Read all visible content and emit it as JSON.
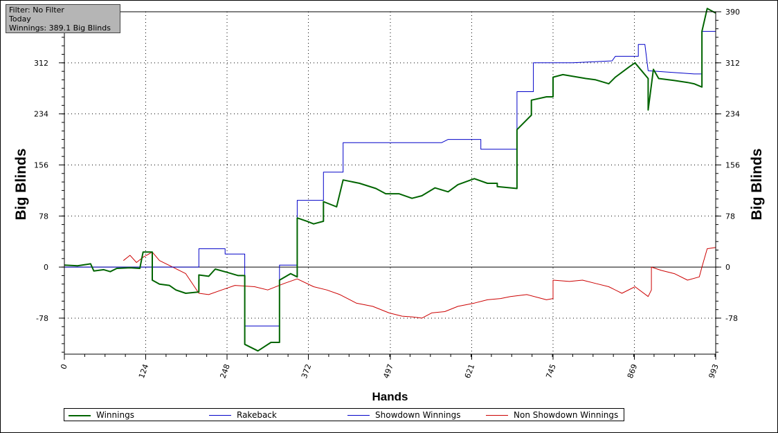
{
  "info_box": {
    "filter": "Filter: No Filter",
    "period": "Today",
    "winnings": "Winnings: 389.1 Big Blinds"
  },
  "chart_data": {
    "type": "line",
    "xlabel": "Hands",
    "ylabel": "Big Blinds",
    "xlim": [
      0,
      993
    ],
    "ylim": [
      -133,
      390
    ],
    "x_ticks": [
      0,
      124,
      248,
      372,
      497,
      621,
      745,
      869,
      993
    ],
    "y_ticks": [
      -78,
      0,
      78,
      156,
      234,
      312,
      390
    ],
    "grid": true,
    "legend": "bottom",
    "series": [
      {
        "name": "Winnings",
        "color": "#006400",
        "points": [
          [
            0,
            3
          ],
          [
            20,
            2
          ],
          [
            40,
            5
          ],
          [
            45,
            -6
          ],
          [
            60,
            -4
          ],
          [
            70,
            -7
          ],
          [
            80,
            -2
          ],
          [
            100,
            -1
          ],
          [
            115,
            -2
          ],
          [
            120,
            23
          ],
          [
            134,
            23
          ],
          [
            134,
            -20
          ],
          [
            145,
            -26
          ],
          [
            160,
            -28
          ],
          [
            170,
            -35
          ],
          [
            185,
            -40
          ],
          [
            205,
            -38
          ],
          [
            205,
            -12
          ],
          [
            220,
            -14
          ],
          [
            230,
            -3
          ],
          [
            248,
            -8
          ],
          [
            265,
            -13
          ],
          [
            275,
            -13
          ],
          [
            275,
            -118
          ],
          [
            295,
            -128
          ],
          [
            315,
            -115
          ],
          [
            328,
            -115
          ],
          [
            328,
            -20
          ],
          [
            345,
            -10
          ],
          [
            355,
            -15
          ],
          [
            355,
            75
          ],
          [
            370,
            70
          ],
          [
            380,
            66
          ],
          [
            395,
            70
          ],
          [
            395,
            100
          ],
          [
            415,
            92
          ],
          [
            425,
            133
          ],
          [
            450,
            128
          ],
          [
            475,
            120
          ],
          [
            490,
            112
          ],
          [
            510,
            112
          ],
          [
            530,
            105
          ],
          [
            545,
            109
          ],
          [
            565,
            121
          ],
          [
            585,
            115
          ],
          [
            600,
            126
          ],
          [
            625,
            135
          ],
          [
            645,
            128
          ],
          [
            660,
            128
          ],
          [
            660,
            123
          ],
          [
            690,
            120
          ],
          [
            690,
            210
          ],
          [
            712,
            232
          ],
          [
            712,
            255
          ],
          [
            735,
            260
          ],
          [
            745,
            260
          ],
          [
            745,
            290
          ],
          [
            760,
            294
          ],
          [
            795,
            288
          ],
          [
            810,
            286
          ],
          [
            830,
            280
          ],
          [
            840,
            290
          ],
          [
            860,
            305
          ],
          [
            870,
            312
          ],
          [
            880,
            300
          ],
          [
            890,
            288
          ],
          [
            890,
            240
          ],
          [
            898,
            302
          ],
          [
            906,
            288
          ],
          [
            930,
            285
          ],
          [
            950,
            282
          ],
          [
            960,
            280
          ],
          [
            972,
            275
          ],
          [
            972,
            360
          ],
          [
            980,
            395
          ],
          [
            993,
            388
          ]
        ]
      },
      {
        "name": "Rakeback",
        "color": "#0000c8",
        "points": [
          [
            0,
            0
          ],
          [
            40,
            0
          ],
          [
            100,
            0
          ],
          [
            205,
            0
          ],
          [
            205,
            28
          ],
          [
            245,
            28
          ],
          [
            245,
            20
          ],
          [
            275,
            20
          ],
          [
            275,
            -90
          ],
          [
            328,
            -90
          ],
          [
            328,
            -80
          ],
          [
            328,
            3
          ],
          [
            355,
            3
          ],
          [
            355,
            102
          ],
          [
            395,
            102
          ],
          [
            395,
            145
          ],
          [
            425,
            145
          ],
          [
            425,
            190
          ],
          [
            575,
            190
          ],
          [
            585,
            195
          ],
          [
            635,
            195
          ],
          [
            635,
            180
          ],
          [
            690,
            180
          ],
          [
            690,
            268
          ],
          [
            715,
            268
          ],
          [
            715,
            312
          ],
          [
            775,
            312
          ],
          [
            835,
            315
          ],
          [
            840,
            322
          ],
          [
            875,
            322
          ],
          [
            875,
            340
          ],
          [
            885,
            340
          ],
          [
            885,
            340
          ],
          [
            890,
            300
          ],
          [
            960,
            295
          ],
          [
            972,
            295
          ],
          [
            972,
            360
          ],
          [
            993,
            360
          ]
        ]
      },
      {
        "name": "Showdown Winnings",
        "color": "#0000c8",
        "points": []
      },
      {
        "name": "Non Showdown Winnings",
        "color": "#cc0000",
        "points": [
          [
            90,
            10
          ],
          [
            100,
            18
          ],
          [
            110,
            7
          ],
          [
            120,
            15
          ],
          [
            134,
            23
          ],
          [
            145,
            10
          ],
          [
            165,
            0
          ],
          [
            185,
            -10
          ],
          [
            205,
            -40
          ],
          [
            220,
            -42
          ],
          [
            240,
            -35
          ],
          [
            260,
            -28
          ],
          [
            290,
            -30
          ],
          [
            310,
            -35
          ],
          [
            335,
            -25
          ],
          [
            355,
            -18
          ],
          [
            380,
            -30
          ],
          [
            400,
            -35
          ],
          [
            420,
            -42
          ],
          [
            445,
            -55
          ],
          [
            470,
            -60
          ],
          [
            495,
            -70
          ],
          [
            515,
            -75
          ],
          [
            530,
            -76
          ],
          [
            545,
            -78
          ],
          [
            560,
            -70
          ],
          [
            580,
            -68
          ],
          [
            600,
            -60
          ],
          [
            625,
            -55
          ],
          [
            645,
            -50
          ],
          [
            665,
            -48
          ],
          [
            680,
            -45
          ],
          [
            705,
            -42
          ],
          [
            735,
            -50
          ],
          [
            745,
            -48
          ],
          [
            745,
            -20
          ],
          [
            770,
            -22
          ],
          [
            790,
            -20
          ],
          [
            810,
            -25
          ],
          [
            830,
            -30
          ],
          [
            850,
            -40
          ],
          [
            870,
            -30
          ],
          [
            890,
            -45
          ],
          [
            895,
            -35
          ],
          [
            895,
            0
          ],
          [
            910,
            -5
          ],
          [
            930,
            -10
          ],
          [
            950,
            -20
          ],
          [
            968,
            -15
          ],
          [
            972,
            0
          ],
          [
            980,
            28
          ],
          [
            993,
            30
          ]
        ]
      }
    ]
  }
}
